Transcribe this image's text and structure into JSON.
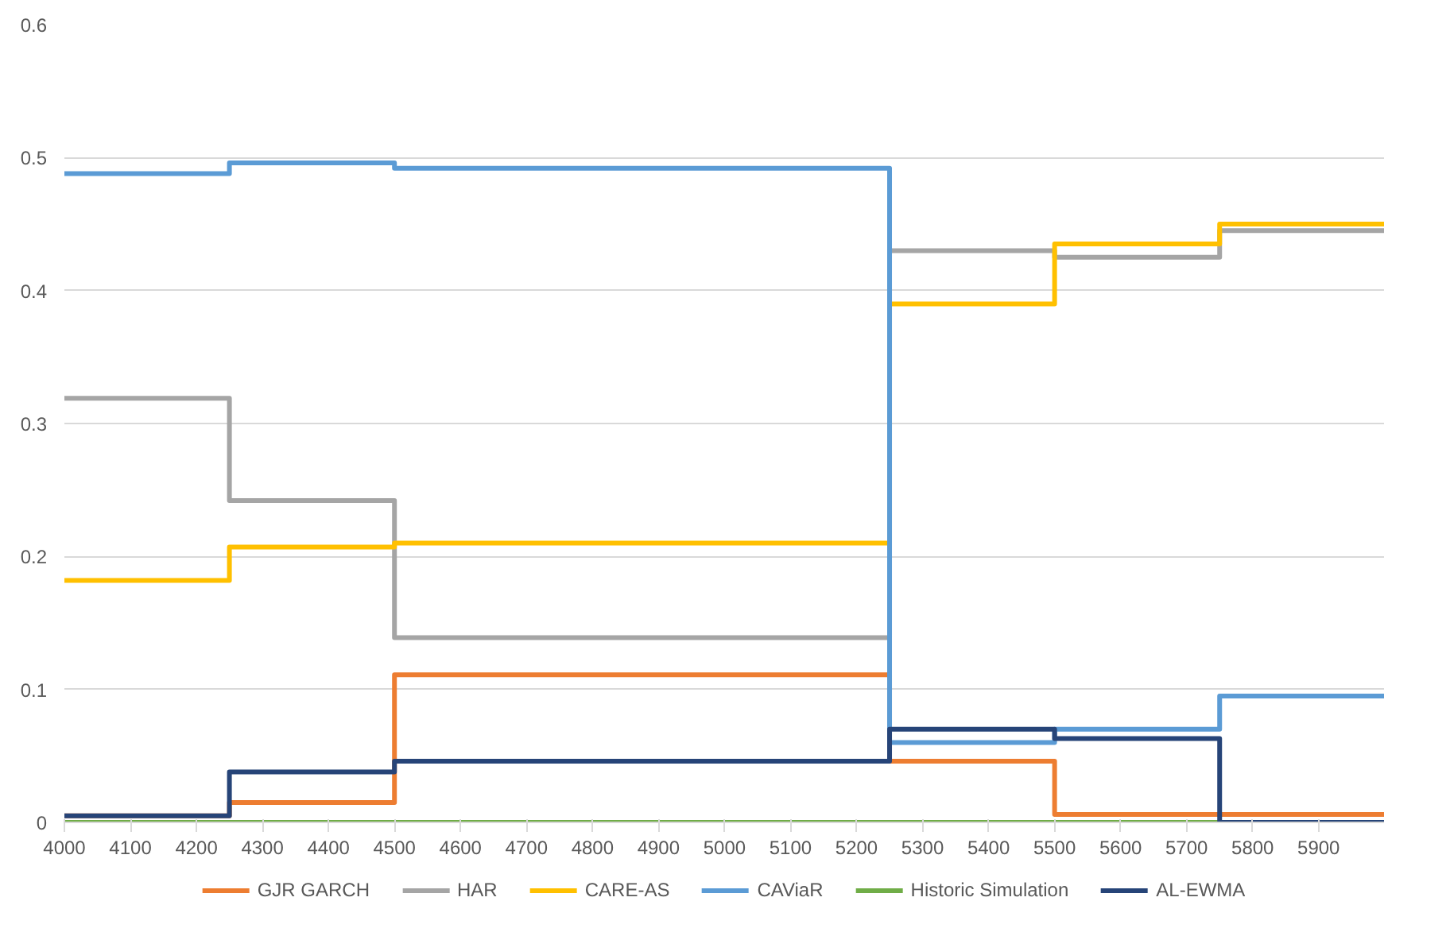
{
  "chart_data": {
    "type": "step",
    "x": [
      4000,
      4250,
      4500,
      5250,
      5500,
      5750,
      5999
    ],
    "series": [
      {
        "name": "GJR GARCH",
        "color": "#ed7d31",
        "values": [
          0.005,
          0.015,
          0.111,
          0.046,
          0.006,
          0.006,
          0.006
        ]
      },
      {
        "name": "HAR",
        "color": "#a5a5a5",
        "values": [
          0.319,
          0.242,
          0.139,
          0.43,
          0.425,
          0.445,
          0.445
        ]
      },
      {
        "name": "CARE-AS",
        "color": "#ffc000",
        "values": [
          0.182,
          0.207,
          0.21,
          0.39,
          0.435,
          0.45,
          0.45
        ]
      },
      {
        "name": "CAViaR",
        "color": "#5b9bd5",
        "values": [
          0.488,
          0.496,
          0.492,
          0.06,
          0.07,
          0.095,
          0.095
        ]
      },
      {
        "name": "Historic Simulation",
        "color": "#70ad47",
        "values": [
          0,
          0,
          0,
          0,
          0,
          0,
          0
        ]
      },
      {
        "name": "AL-EWMA",
        "color": "#264478",
        "values": [
          0.005,
          0.038,
          0.046,
          0.07,
          0.063,
          0.0,
          0.0
        ]
      }
    ],
    "xlim": [
      4000,
      5999
    ],
    "xticks": [
      4000,
      4100,
      4200,
      4300,
      4400,
      4500,
      4600,
      4700,
      4800,
      4900,
      5000,
      5100,
      5200,
      5300,
      5400,
      5500,
      5600,
      5700,
      5800,
      5900
    ],
    "ylim": [
      0,
      0.6
    ],
    "yticks": [
      {
        "value": 0,
        "label": "0"
      },
      0.1,
      0.2,
      0.3,
      0.4,
      0.5,
      0.6
    ],
    "grid": "y",
    "legend": "bottom",
    "line_style": "solid"
  }
}
